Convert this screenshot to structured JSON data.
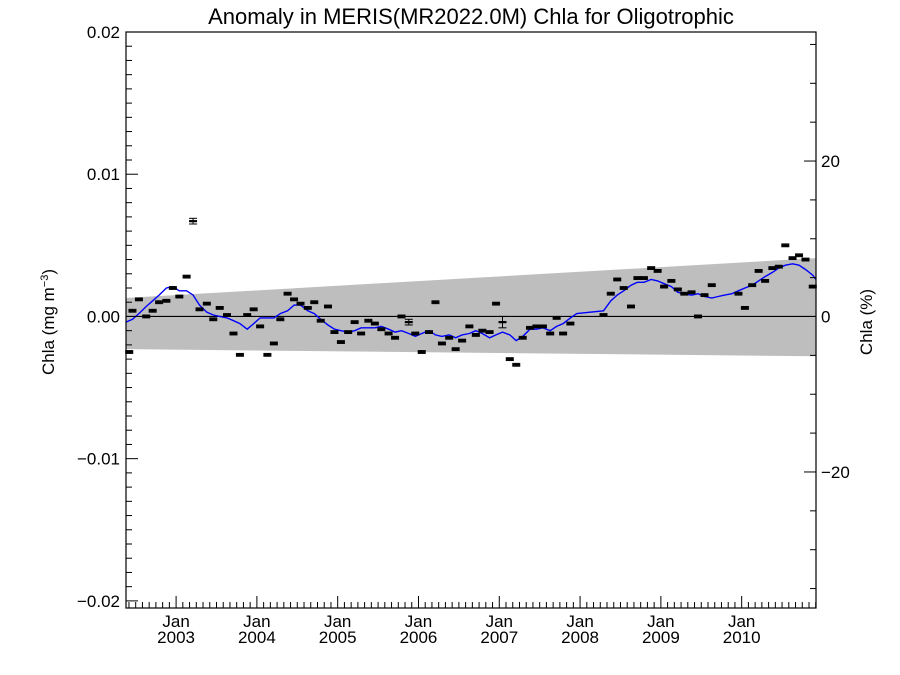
{
  "chart_data": {
    "type": "line",
    "title": "Anomaly in MERIS(MR2022.0M) Chla for Oligotrophic",
    "ylabel": "Chla (mg m⁻³)",
    "ylabel_parts": {
      "base": "Chla (mg m",
      "exp": "−3",
      "close": ")"
    },
    "ylabel_right": "Chla (%)",
    "ylim": [
      -0.0205,
      0.02
    ],
    "ylim_right_pct": [
      -37.5,
      36.6
    ],
    "yticks": [
      {
        "value": 0.02,
        "label": "0.02"
      },
      {
        "value": 0.01,
        "label": "0.01"
      },
      {
        "value": 0.0,
        "label": "0.00"
      },
      {
        "value": -0.01,
        "label": "−0.01"
      },
      {
        "value": -0.02,
        "label": "−0.02"
      }
    ],
    "yticks_right": [
      {
        "value": 20,
        "label": "20"
      },
      {
        "value": 0,
        "label": "0"
      },
      {
        "value": -20,
        "label": "−20"
      }
    ],
    "xlim": [
      2002.38,
      2010.92
    ],
    "xticks": [
      {
        "value": 2003.0,
        "month": "Jan",
        "year": "2003"
      },
      {
        "value": 2004.0,
        "month": "Jan",
        "year": "2004"
      },
      {
        "value": 2005.0,
        "month": "Jan",
        "year": "2005"
      },
      {
        "value": 2006.0,
        "month": "Jan",
        "year": "2006"
      },
      {
        "value": 2007.0,
        "month": "Jan",
        "year": "2007"
      },
      {
        "value": 2008.0,
        "month": "Jan",
        "year": "2008"
      },
      {
        "value": 2009.0,
        "month": "Jan",
        "year": "2009"
      },
      {
        "value": 2010.0,
        "month": "Jan",
        "year": "2010"
      }
    ],
    "confidence_band": {
      "color": "#bebebe",
      "x": [
        2002.38,
        2010.92
      ],
      "upper": [
        0.0013,
        0.0041
      ],
      "lower": [
        -0.0023,
        -0.0028
      ]
    },
    "series": [
      {
        "type": "scatter_errorbar",
        "color": "#000000",
        "points": [
          {
            "x": 2002.42,
            "y": -0.0025,
            "err": 0.0001
          },
          {
            "x": 2002.46,
            "y": 0.0004,
            "err": 0.0001
          },
          {
            "x": 2002.54,
            "y": 0.0012,
            "err": 0.0001
          },
          {
            "x": 2002.63,
            "y": 0.0,
            "err": 0.0001
          },
          {
            "x": 2002.71,
            "y": 0.0004,
            "err": 0.0001
          },
          {
            "x": 2002.79,
            "y": 0.001,
            "err": 0.0001
          },
          {
            "x": 2002.88,
            "y": 0.0011,
            "err": 0.0001
          },
          {
            "x": 2002.96,
            "y": 0.002,
            "err": 0.0001
          },
          {
            "x": 2003.04,
            "y": 0.0014,
            "err": 0.0001
          },
          {
            "x": 2003.13,
            "y": 0.0028,
            "err": 0.0001
          },
          {
            "x": 2003.21,
            "y": 0.0067,
            "err": 0.0002
          },
          {
            "x": 2003.29,
            "y": 0.0005,
            "err": 0.0001
          },
          {
            "x": 2003.38,
            "y": 0.0009,
            "err": 0.0001
          },
          {
            "x": 2003.46,
            "y": -0.0002,
            "err": 0.0001
          },
          {
            "x": 2003.54,
            "y": 0.0006,
            "err": 0.0001
          },
          {
            "x": 2003.63,
            "y": 0.0001,
            "err": 0.0001
          },
          {
            "x": 2003.71,
            "y": -0.0012,
            "err": 0.0001
          },
          {
            "x": 2003.79,
            "y": -0.0027,
            "err": 0.0001
          },
          {
            "x": 2003.88,
            "y": 0.0001,
            "err": 0.0001
          },
          {
            "x": 2003.96,
            "y": 0.0005,
            "err": 0.0001
          },
          {
            "x": 2004.04,
            "y": -0.0007,
            "err": 0.0001
          },
          {
            "x": 2004.13,
            "y": -0.0027,
            "err": 0.0001
          },
          {
            "x": 2004.21,
            "y": -0.0019,
            "err": 0.0001
          },
          {
            "x": 2004.29,
            "y": -0.0002,
            "err": 0.0001
          },
          {
            "x": 2004.38,
            "y": 0.0016,
            "err": 0.0001
          },
          {
            "x": 2004.46,
            "y": 0.0012,
            "err": 0.0001
          },
          {
            "x": 2004.54,
            "y": 0.0009,
            "err": 0.0001
          },
          {
            "x": 2004.63,
            "y": 0.0006,
            "err": 0.0001
          },
          {
            "x": 2004.71,
            "y": 0.001,
            "err": 0.0001
          },
          {
            "x": 2004.79,
            "y": -0.0003,
            "err": 0.0001
          },
          {
            "x": 2004.88,
            "y": 0.0007,
            "err": 0.0001
          },
          {
            "x": 2004.96,
            "y": -0.0011,
            "err": 0.0001
          },
          {
            "x": 2005.04,
            "y": -0.0018,
            "err": 0.0001
          },
          {
            "x": 2005.13,
            "y": -0.0011,
            "err": 0.0001
          },
          {
            "x": 2005.21,
            "y": -0.0004,
            "err": 0.0001
          },
          {
            "x": 2005.29,
            "y": -0.0012,
            "err": 0.0001
          },
          {
            "x": 2005.38,
            "y": -0.0003,
            "err": 0.0001
          },
          {
            "x": 2005.46,
            "y": -0.0005,
            "err": 0.0001
          },
          {
            "x": 2005.54,
            "y": -0.0009,
            "err": 0.0001
          },
          {
            "x": 2005.63,
            "y": -0.0012,
            "err": 0.0001
          },
          {
            "x": 2005.71,
            "y": -0.0015,
            "err": 0.0001
          },
          {
            "x": 2005.79,
            "y": 0.0,
            "err": 0.0001
          },
          {
            "x": 2005.88,
            "y": -0.0004,
            "err": 0.0002
          },
          {
            "x": 2005.96,
            "y": -0.0012,
            "err": 0.0001
          },
          {
            "x": 2006.04,
            "y": -0.0025,
            "err": 0.0001
          },
          {
            "x": 2006.13,
            "y": -0.0011,
            "err": 0.0001
          },
          {
            "x": 2006.21,
            "y": 0.001,
            "err": 0.0001
          },
          {
            "x": 2006.29,
            "y": -0.0019,
            "err": 0.0001
          },
          {
            "x": 2006.38,
            "y": -0.0015,
            "err": 0.0001
          },
          {
            "x": 2006.46,
            "y": -0.0023,
            "err": 0.0001
          },
          {
            "x": 2006.54,
            "y": -0.0017,
            "err": 0.0001
          },
          {
            "x": 2006.63,
            "y": -0.0007,
            "err": 0.0001
          },
          {
            "x": 2006.71,
            "y": -0.0013,
            "err": 0.0001
          },
          {
            "x": 2006.79,
            "y": -0.001,
            "err": 0.0001
          },
          {
            "x": 2006.88,
            "y": -0.0011,
            "err": 0.0001
          },
          {
            "x": 2006.96,
            "y": 0.0009,
            "err": 0.0001
          },
          {
            "x": 2007.04,
            "y": -0.0004,
            "err": 0.0004
          },
          {
            "x": 2007.13,
            "y": -0.003,
            "err": 0.0001
          },
          {
            "x": 2007.21,
            "y": -0.0034,
            "err": 0.0001
          },
          {
            "x": 2007.29,
            "y": -0.0015,
            "err": 0.0001
          },
          {
            "x": 2007.38,
            "y": -0.0008,
            "err": 0.0001
          },
          {
            "x": 2007.46,
            "y": -0.0007,
            "err": 0.0001
          },
          {
            "x": 2007.54,
            "y": -0.0007,
            "err": 0.0001
          },
          {
            "x": 2007.63,
            "y": -0.0012,
            "err": 0.0001
          },
          {
            "x": 2007.71,
            "y": -0.0001,
            "err": 0.0001
          },
          {
            "x": 2007.79,
            "y": -0.0012,
            "err": 0.0001
          },
          {
            "x": 2007.88,
            "y": -0.0005,
            "err": 0.0001
          },
          {
            "x": 2008.29,
            "y": 0.0001,
            "err": 0.0001
          },
          {
            "x": 2008.38,
            "y": 0.0016,
            "err": 0.0001
          },
          {
            "x": 2008.46,
            "y": 0.0026,
            "err": 0.0001
          },
          {
            "x": 2008.54,
            "y": 0.002,
            "err": 0.0001
          },
          {
            "x": 2008.63,
            "y": 0.0007,
            "err": 0.0001
          },
          {
            "x": 2008.71,
            "y": 0.0027,
            "err": 0.0001
          },
          {
            "x": 2008.79,
            "y": 0.0027,
            "err": 0.0001
          },
          {
            "x": 2008.88,
            "y": 0.0034,
            "err": 0.0001
          },
          {
            "x": 2008.96,
            "y": 0.0032,
            "err": 0.0001
          },
          {
            "x": 2009.04,
            "y": 0.0021,
            "err": 0.0001
          },
          {
            "x": 2009.13,
            "y": 0.0025,
            "err": 0.0001
          },
          {
            "x": 2009.21,
            "y": 0.0019,
            "err": 0.0001
          },
          {
            "x": 2009.29,
            "y": 0.0016,
            "err": 0.0001
          },
          {
            "x": 2009.38,
            "y": 0.0017,
            "err": 0.0001
          },
          {
            "x": 2009.46,
            "y": 0.0,
            "err": 0.0001
          },
          {
            "x": 2009.54,
            "y": 0.0015,
            "err": 0.0001
          },
          {
            "x": 2009.63,
            "y": 0.0022,
            "err": 0.0001
          },
          {
            "x": 2009.96,
            "y": 0.0016,
            "err": 0.0001
          },
          {
            "x": 2010.04,
            "y": 0.0006,
            "err": 0.0001
          },
          {
            "x": 2010.13,
            "y": 0.0022,
            "err": 0.0001
          },
          {
            "x": 2010.21,
            "y": 0.0032,
            "err": 0.0001
          },
          {
            "x": 2010.29,
            "y": 0.0025,
            "err": 0.0001
          },
          {
            "x": 2010.38,
            "y": 0.0034,
            "err": 0.0001
          },
          {
            "x": 2010.46,
            "y": 0.0035,
            "err": 0.0001
          },
          {
            "x": 2010.54,
            "y": 0.005,
            "err": 0.0001
          },
          {
            "x": 2010.63,
            "y": 0.0041,
            "err": 0.0001
          },
          {
            "x": 2010.71,
            "y": 0.0043,
            "err": 0.0001
          },
          {
            "x": 2010.79,
            "y": 0.004,
            "err": 0.0001
          },
          {
            "x": 2010.88,
            "y": 0.0021,
            "err": 0.0001
          }
        ]
      },
      {
        "type": "line",
        "color": "#0000ff",
        "x": [
          2002.38,
          2002.46,
          2002.54,
          2002.63,
          2002.71,
          2002.79,
          2002.88,
          2002.96,
          2003.04,
          2003.13,
          2003.21,
          2003.29,
          2003.38,
          2003.46,
          2003.54,
          2003.63,
          2003.71,
          2003.79,
          2003.88,
          2003.96,
          2004.04,
          2004.13,
          2004.21,
          2004.29,
          2004.38,
          2004.46,
          2004.54,
          2004.63,
          2004.71,
          2004.79,
          2004.88,
          2004.96,
          2005.04,
          2005.13,
          2005.21,
          2005.29,
          2005.38,
          2005.46,
          2005.54,
          2005.63,
          2005.71,
          2005.79,
          2005.88,
          2005.96,
          2006.04,
          2006.13,
          2006.21,
          2006.29,
          2006.38,
          2006.46,
          2006.54,
          2006.63,
          2006.71,
          2006.79,
          2006.88,
          2006.96,
          2007.04,
          2007.13,
          2007.21,
          2007.29,
          2007.38,
          2007.46,
          2007.54,
          2007.63,
          2007.71,
          2007.79,
          2007.88,
          2007.96,
          2008.29,
          2008.38,
          2008.46,
          2008.54,
          2008.63,
          2008.71,
          2008.79,
          2008.88,
          2008.96,
          2009.04,
          2009.13,
          2009.21,
          2009.29,
          2009.38,
          2009.46,
          2009.54,
          2009.63,
          2009.71,
          2009.79,
          2009.88,
          2009.96,
          2010.04,
          2010.13,
          2010.21,
          2010.29,
          2010.38,
          2010.46,
          2010.54,
          2010.63,
          2010.71,
          2010.79,
          2010.88,
          2010.92
        ],
        "y": [
          -0.0004,
          -0.0002,
          0.0002,
          0.0007,
          0.0011,
          0.0015,
          0.002,
          0.0021,
          0.0018,
          0.0018,
          0.0015,
          0.0008,
          0.0003,
          0.0001,
          0.0,
          -0.0001,
          -0.0003,
          -0.0005,
          -0.0009,
          -0.0005,
          -0.0001,
          -0.0001,
          -0.0001,
          0.0002,
          0.0004,
          0.0008,
          0.0008,
          0.0004,
          0.0002,
          -0.0002,
          -0.0006,
          -0.0009,
          -0.001,
          -0.0011,
          -0.001,
          -0.0008,
          -0.0008,
          -0.0008,
          -0.0007,
          -0.0009,
          -0.0011,
          -0.001,
          -0.0012,
          -0.0014,
          -0.0012,
          -0.001,
          -0.0013,
          -0.0014,
          -0.0013,
          -0.0015,
          -0.0013,
          -0.0012,
          -0.001,
          -0.0012,
          -0.0015,
          -0.0013,
          -0.0011,
          -0.0013,
          -0.0017,
          -0.0014,
          -0.0009,
          -0.0009,
          -0.0008,
          -0.001,
          -0.0007,
          -0.0005,
          -0.0001,
          0.0002,
          0.0004,
          0.0011,
          0.0015,
          0.0018,
          0.0022,
          0.0024,
          0.0024,
          0.0026,
          0.0025,
          0.0023,
          0.0021,
          0.0017,
          0.0016,
          0.0015,
          0.0016,
          0.0014,
          0.0013,
          0.0014,
          0.0015,
          0.0016,
          0.0018,
          0.002,
          0.0022,
          0.0025,
          0.0028,
          0.0031,
          0.0034,
          0.0036,
          0.0037,
          0.0036,
          0.0033,
          0.0029,
          0.0026
        ]
      }
    ]
  }
}
